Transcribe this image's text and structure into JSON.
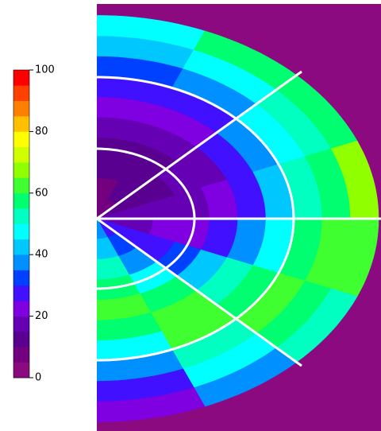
{
  "chart_data": {
    "type": "polar-heatmap",
    "zlim": [
      0,
      100
    ],
    "cticks": [
      0,
      20,
      40,
      60,
      80,
      100
    ],
    "colors": [
      "#8b0a7f",
      "#72007f",
      "#5a0090",
      "#6500b4",
      "#7f00e0",
      "#4010ff",
      "#0040ff",
      "#0090ff",
      "#00c8ff",
      "#00ffff",
      "#00ffc0",
      "#00ff70",
      "#40ff30",
      "#90ff00",
      "#d0ff00",
      "#ffff00",
      "#ffc000",
      "#ff8000",
      "#ff4000",
      "#ff0000"
    ],
    "values": [
      [
        5,
        8,
        10,
        12,
        15,
        20,
        25,
        30,
        40,
        45
      ],
      [
        8,
        10,
        12,
        14,
        16,
        20,
        28,
        38,
        45,
        55
      ],
      [
        12,
        12,
        14,
        15,
        18,
        25,
        35,
        45,
        52,
        58
      ],
      [
        15,
        15,
        15,
        16,
        20,
        28,
        40,
        50,
        58,
        65
      ],
      [
        18,
        18,
        20,
        22,
        28,
        35,
        45,
        55,
        60,
        62
      ],
      [
        25,
        25,
        28,
        32,
        40,
        50,
        58,
        60,
        55,
        50
      ],
      [
        28,
        30,
        35,
        45,
        55,
        60,
        60,
        52,
        45,
        35
      ],
      [
        35,
        40,
        50,
        58,
        60,
        55,
        45,
        35,
        28,
        20
      ]
    ]
  }
}
